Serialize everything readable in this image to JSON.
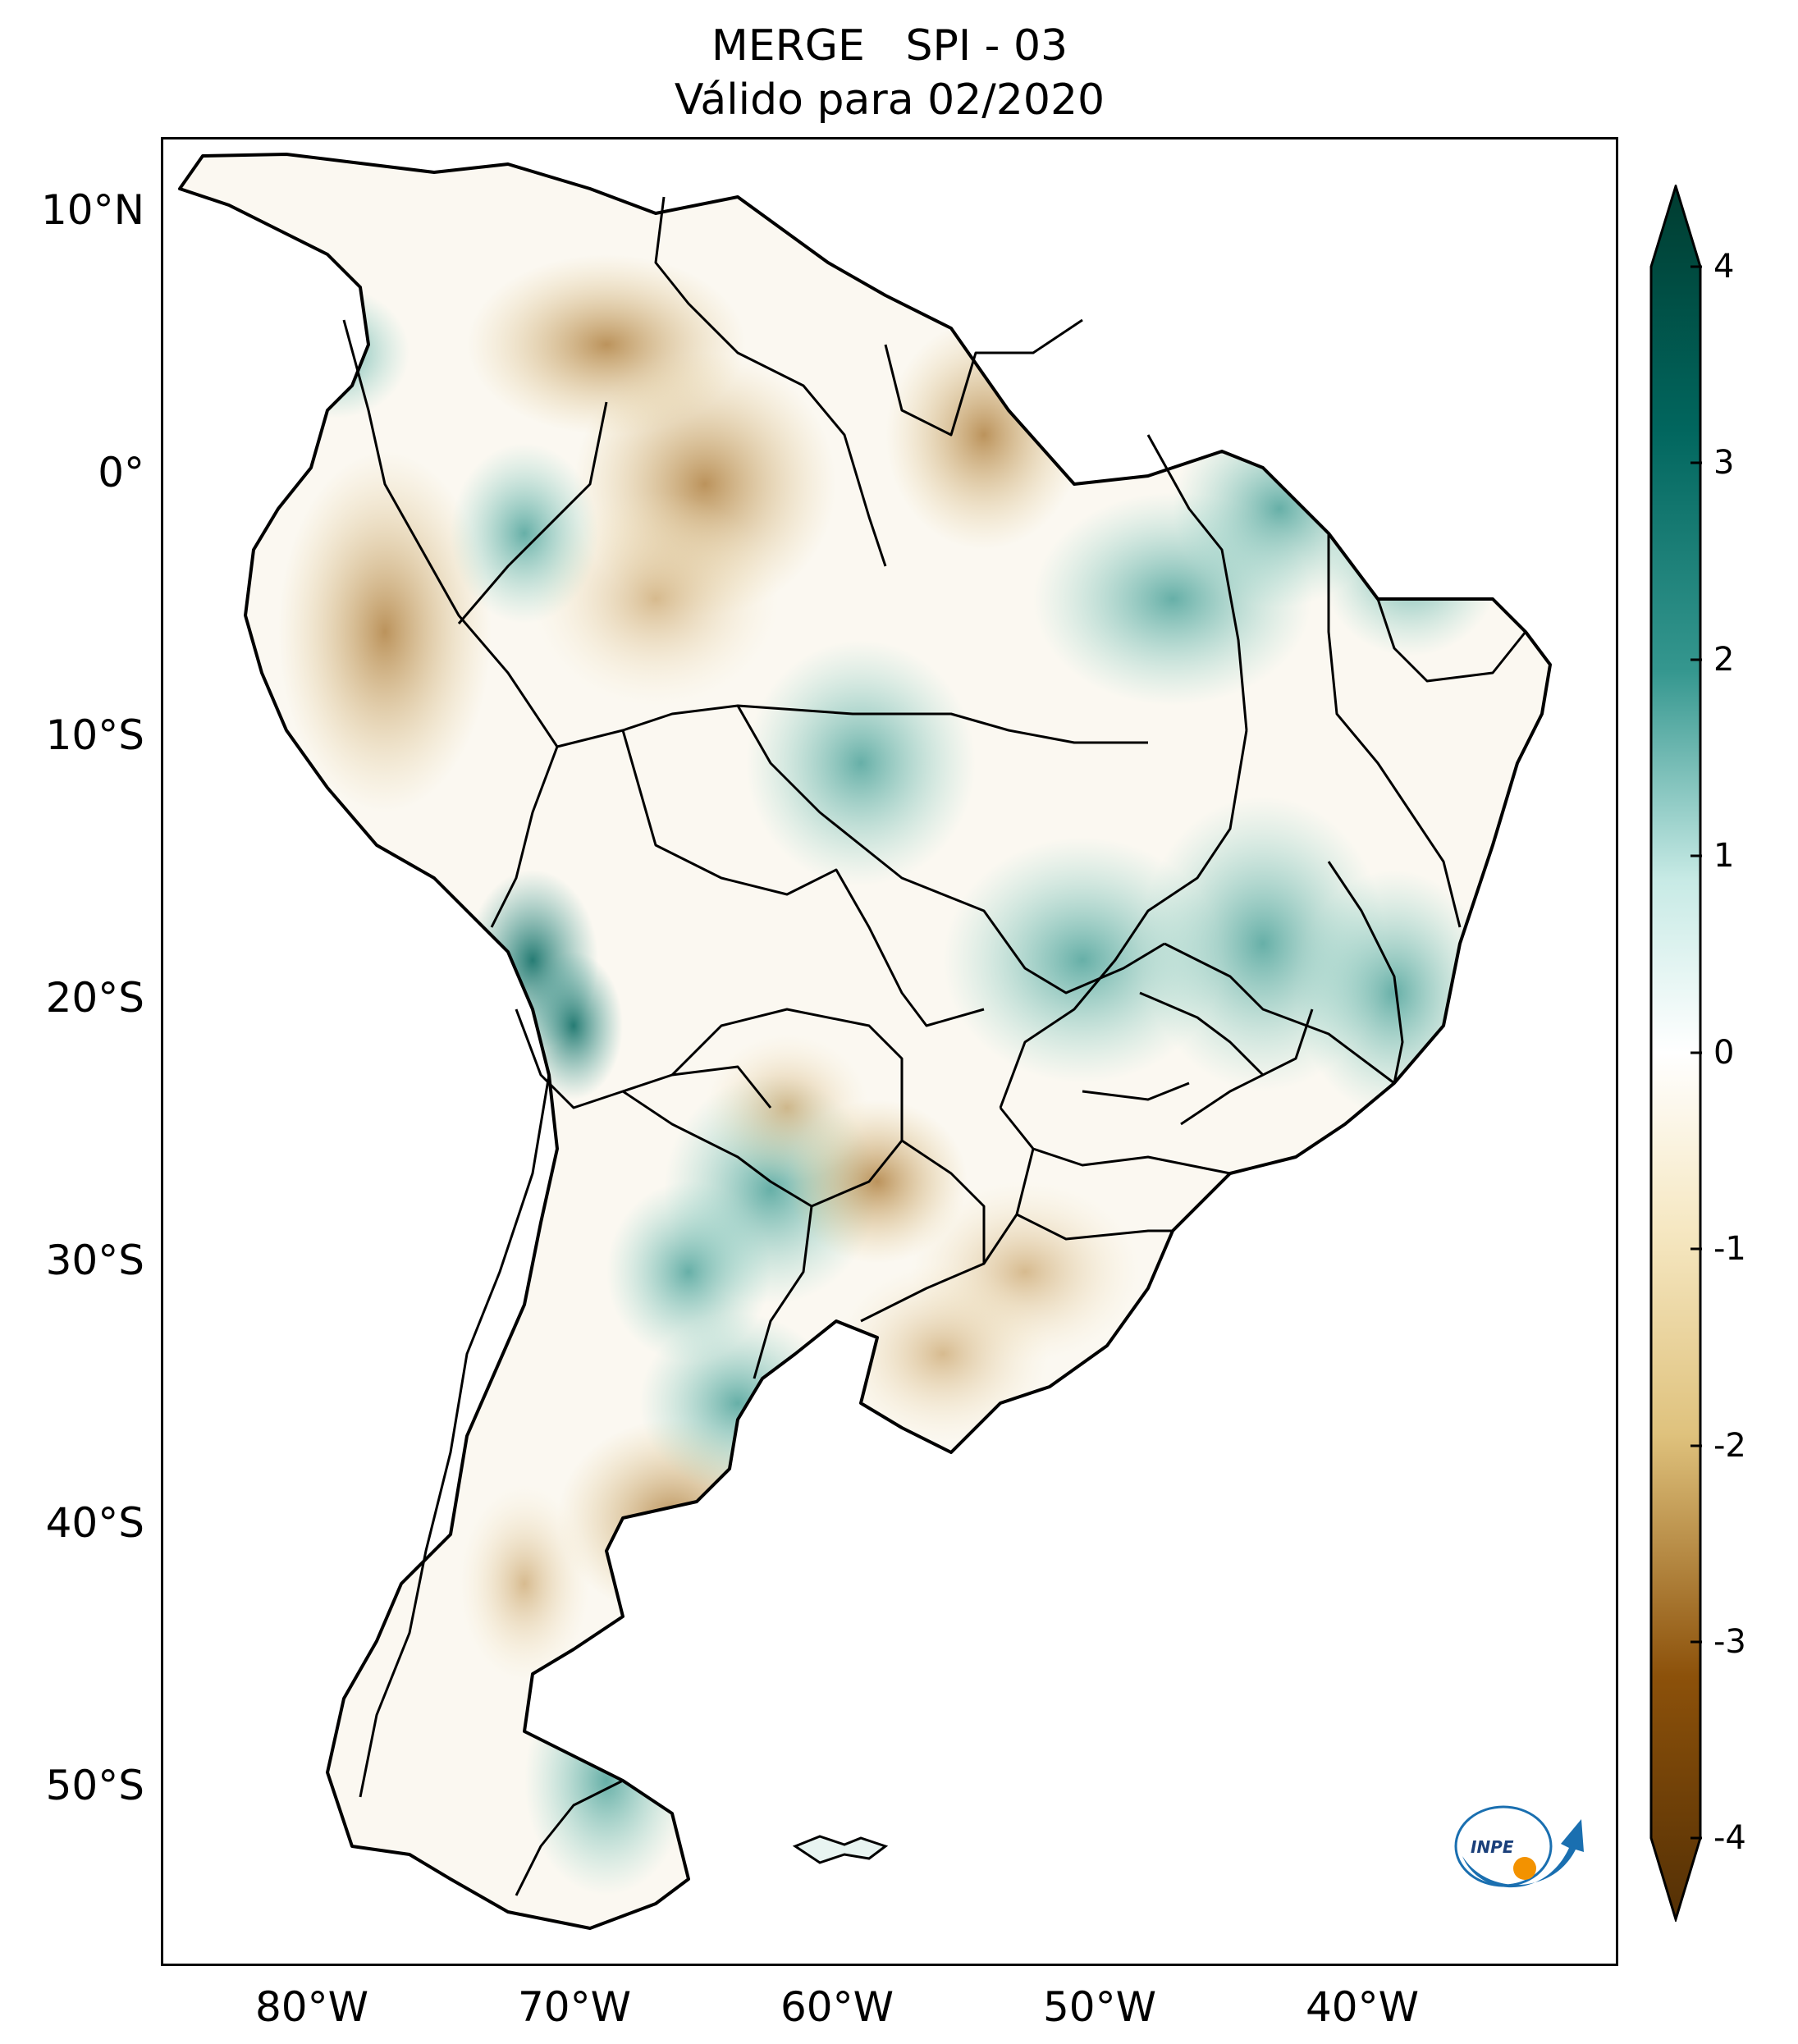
{
  "title": {
    "line1": "MERGE   SPI - 03",
    "line2": "Válido para 02/2020"
  },
  "map": {
    "lat_ticks": [
      "10°N",
      "0°",
      "10°S",
      "20°S",
      "30°S",
      "40°S",
      "50°S"
    ],
    "lon_ticks": [
      "80°W",
      "70°W",
      "60°W",
      "50°W",
      "40°W"
    ]
  },
  "colorbar": {
    "ticks": [
      "4",
      "3",
      "2",
      "1",
      "0",
      "-1",
      "-2",
      "-3",
      "-4"
    ],
    "colors": {
      "high": "#003c30",
      "mid_high": "#35978f",
      "zero": "#ffffff",
      "mid_low": "#dfc27d",
      "low": "#543005"
    }
  },
  "logo": {
    "text": "INPE"
  }
}
